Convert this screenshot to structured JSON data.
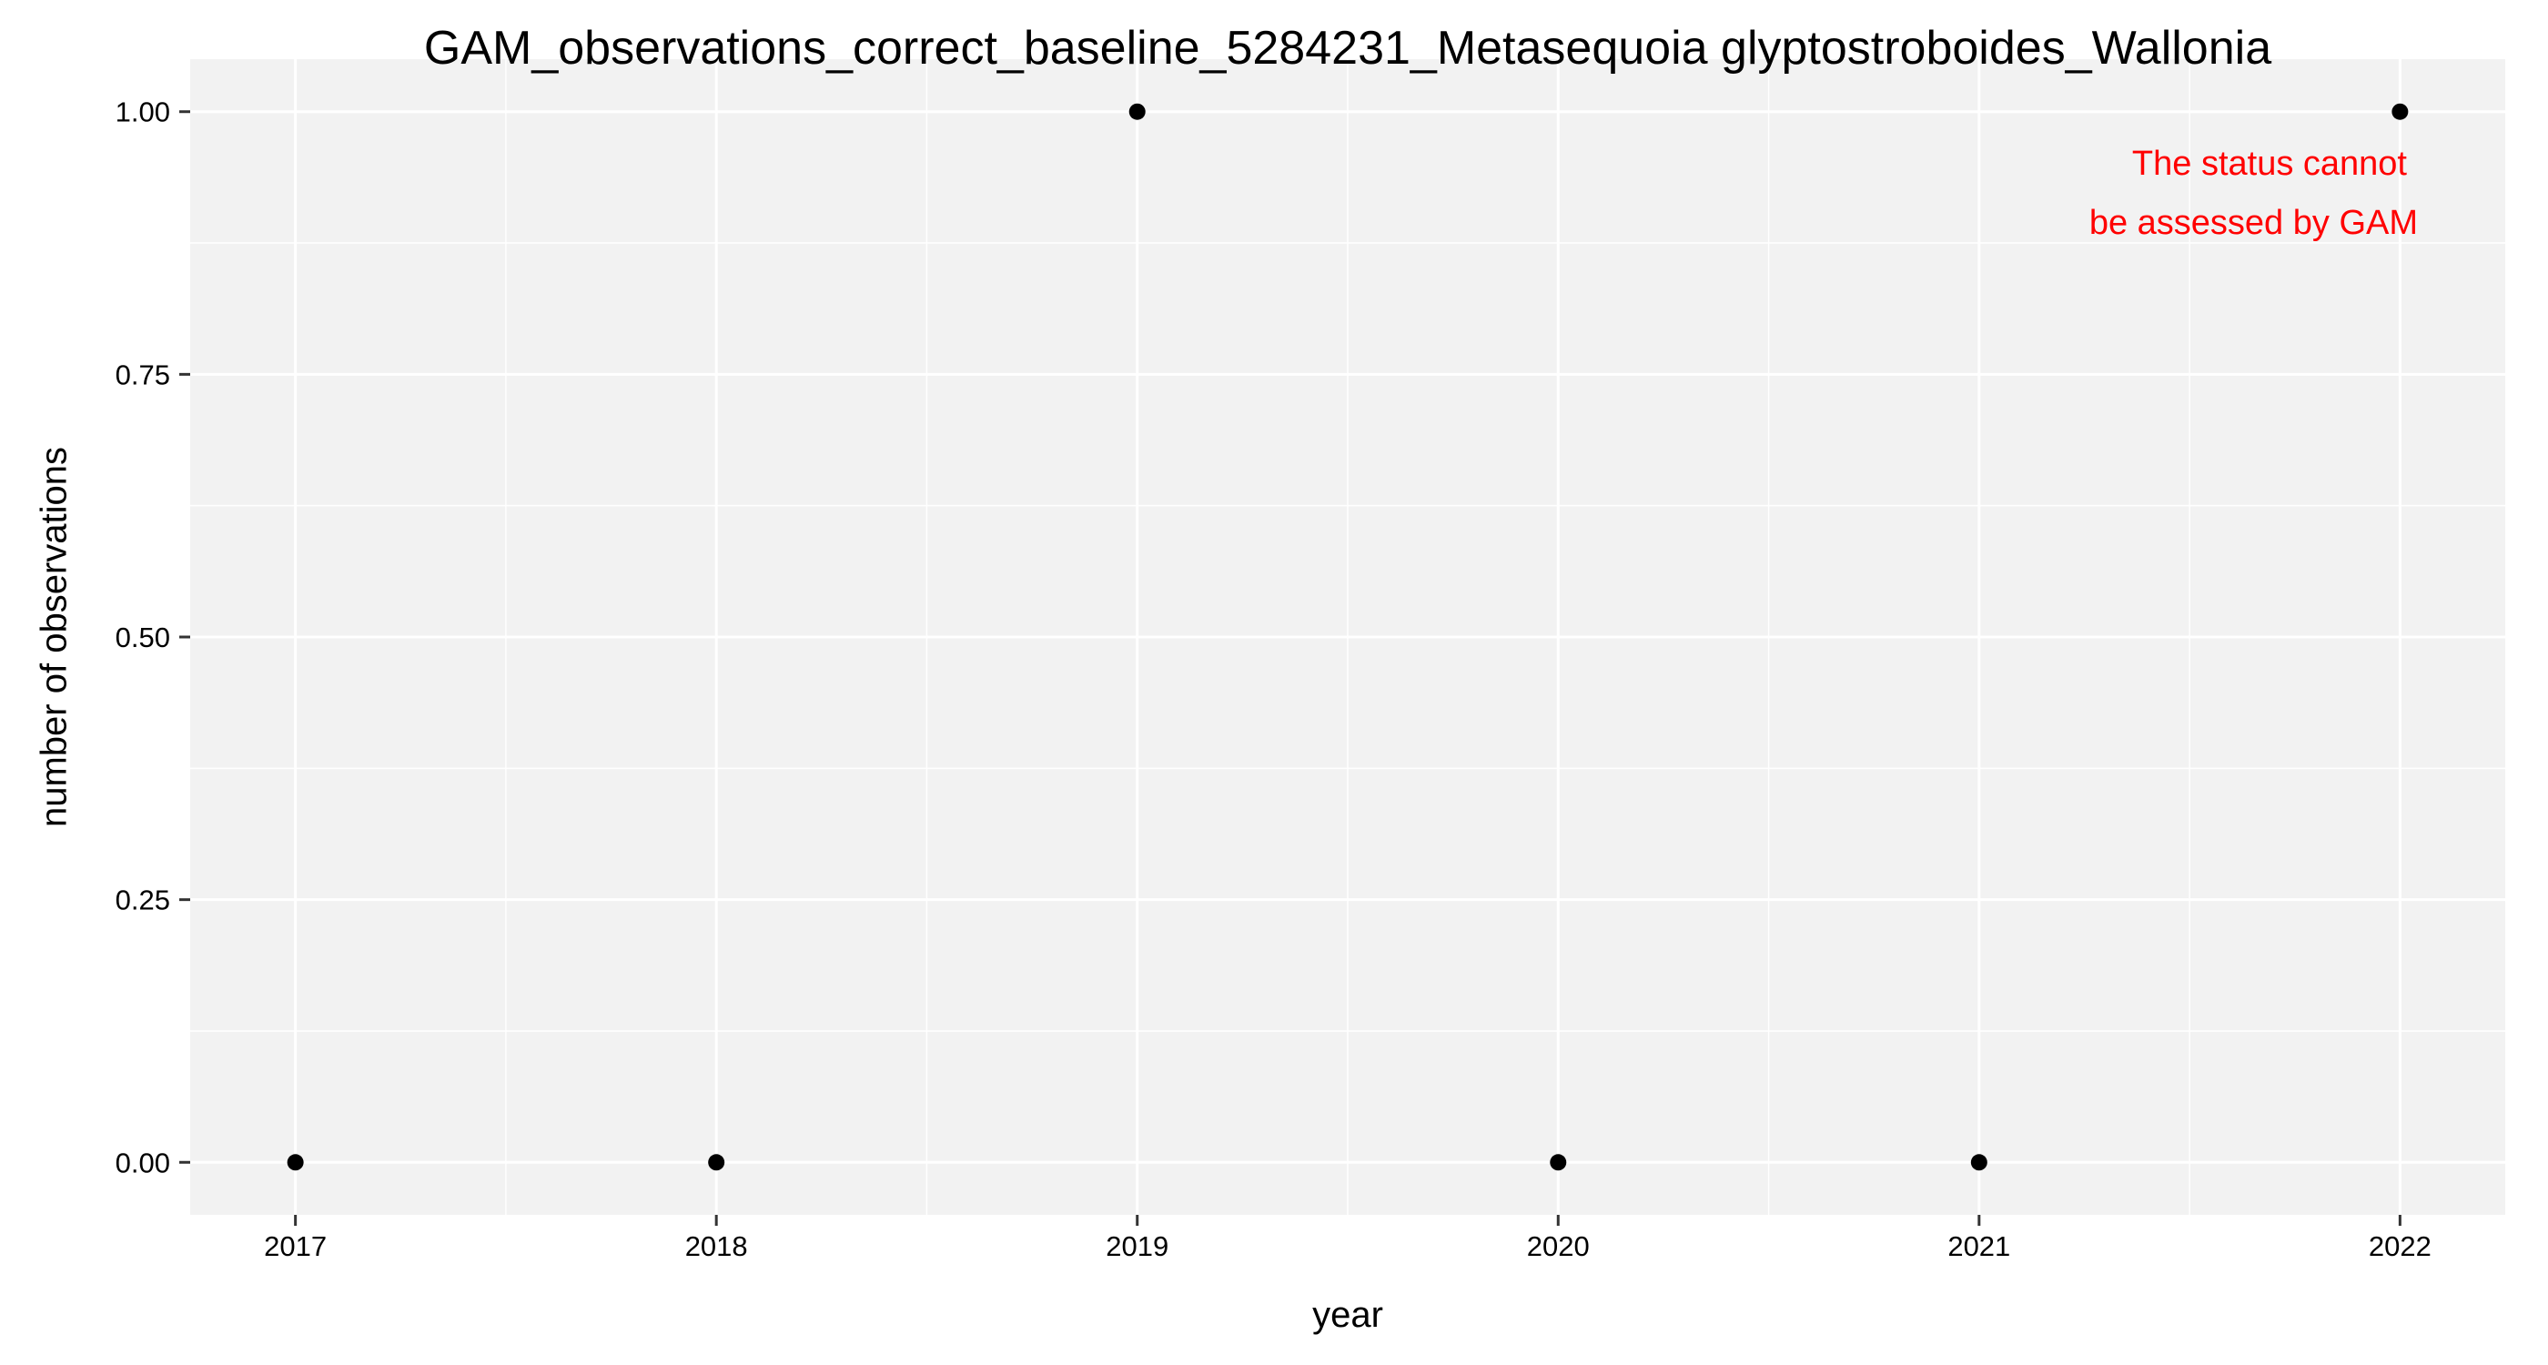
{
  "chart_data": {
    "type": "scatter",
    "title": "GAM_observations_correct_baseline_5284231_Metasequoia glyptostroboides_Wallonia",
    "xlabel": "year",
    "ylabel": "number of observations",
    "x": [
      2017,
      2018,
      2019,
      2020,
      2021,
      2022
    ],
    "y": [
      0,
      0,
      1,
      0,
      0,
      1
    ],
    "xlim": [
      2016.75,
      2022.25
    ],
    "ylim": [
      -0.05,
      1.05
    ],
    "x_ticks": [
      2017,
      2018,
      2019,
      2020,
      2021,
      2022
    ],
    "x_tick_labels": [
      "2017",
      "2018",
      "2019",
      "2020",
      "2021",
      "2022"
    ],
    "y_ticks": [
      0,
      0.25,
      0.5,
      0.75,
      1
    ],
    "y_tick_labels": [
      "0.00",
      "0.25",
      "0.50",
      "0.75",
      "1.00"
    ],
    "grid": true,
    "annotation": {
      "lines": [
        "The status cannot",
        "be assessed by GAM"
      ],
      "color": "#ff0000",
      "placement": "top-right"
    },
    "colors": {
      "panel_background": "#f2f2f2",
      "grid": "#ffffff",
      "points": "#000000"
    }
  }
}
